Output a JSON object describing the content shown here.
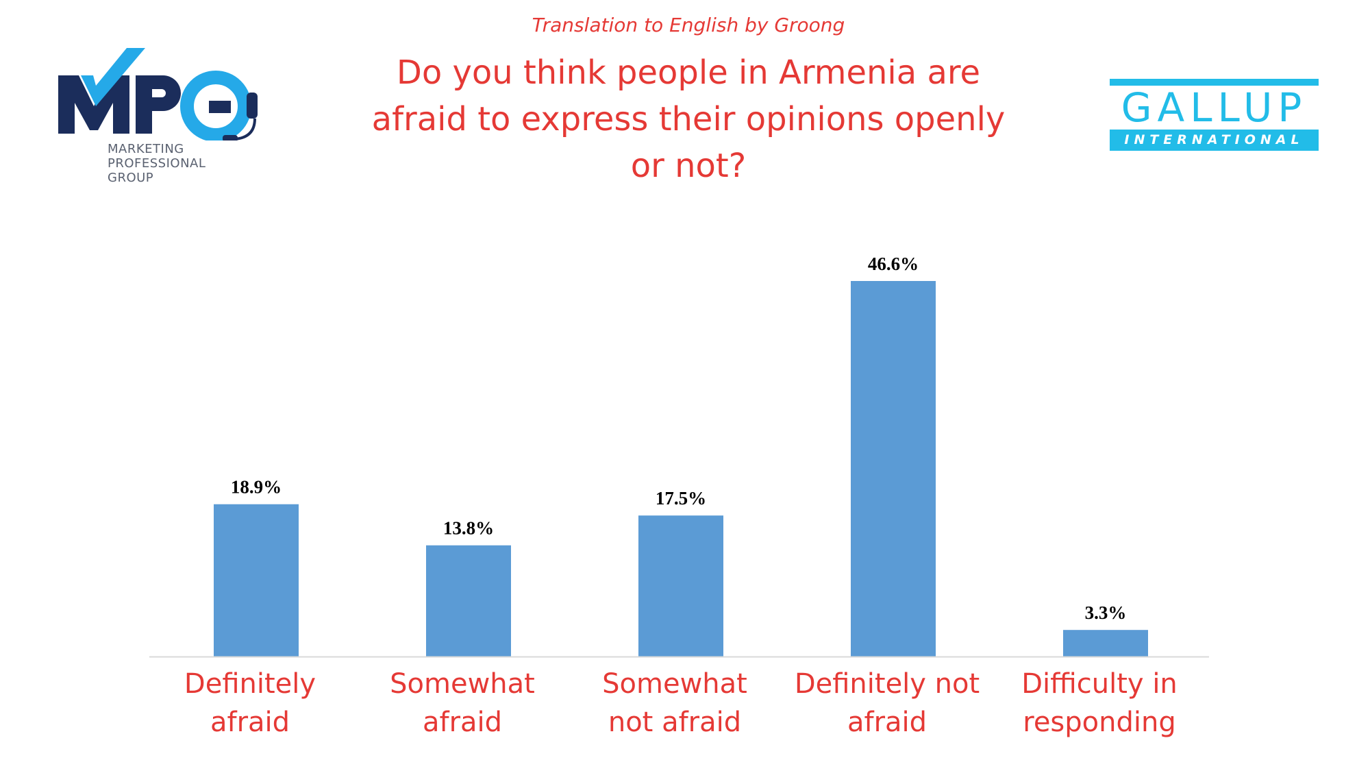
{
  "header": {
    "credit": "Translation to English by Groong",
    "title": "Do you think people in Armenia are afraid to express their opinions openly or not?"
  },
  "logos": {
    "left": {
      "name": "MPG",
      "subtitle_lines": [
        "MARKETING",
        "PROFESSIONAL",
        "GROUP"
      ],
      "colors": {
        "navy": "#1b2d5b",
        "accent": "#25a9e8"
      }
    },
    "right": {
      "name": "GALLUP",
      "subtitle": "INTERNATIONAL",
      "color": "#22bce8"
    }
  },
  "colors": {
    "bar": "#5b9bd5",
    "label": "#e53935",
    "axis": "#d9d9d9"
  },
  "chart_data": {
    "type": "bar",
    "title": "Do you think people in Armenia are afraid to express their opinions openly or not?",
    "categories": [
      "Definitely afraid",
      "Somewhat afraid",
      "Somewhat not afraid",
      "Definitely not afraid",
      "Difficulty in responding"
    ],
    "category_lines": [
      [
        "Definitely",
        "afraid"
      ],
      [
        "Somewhat",
        "afraid"
      ],
      [
        "Somewhat",
        "not afraid"
      ],
      [
        "Definitely not",
        "afraid"
      ],
      [
        "Difficulty in",
        "responding"
      ]
    ],
    "values": [
      18.9,
      13.8,
      17.5,
      46.6,
      3.3
    ],
    "value_labels": [
      "18.9%",
      "13.8%",
      "17.5%",
      "46.6%",
      "3.3%"
    ],
    "unit": "%",
    "ylim": [
      0,
      46.6
    ],
    "grid": false,
    "legend": "none"
  }
}
